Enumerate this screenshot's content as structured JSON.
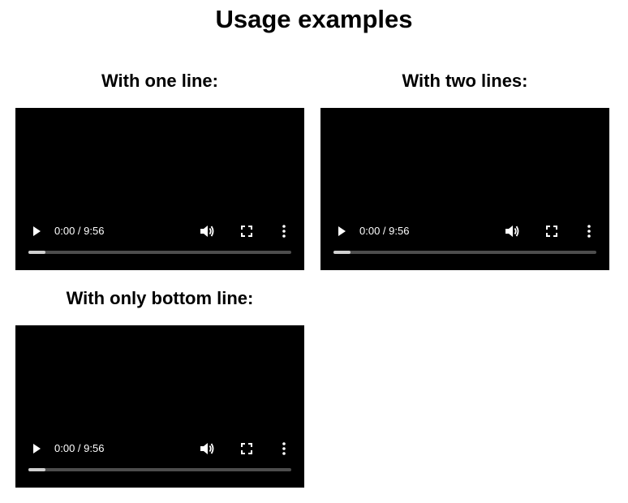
{
  "page": {
    "title": "Usage examples"
  },
  "examples": [
    {
      "heading": "With one line:",
      "player": {
        "time": "0:00 / 9:56",
        "progress_fraction": 0.065
      }
    },
    {
      "heading": "With two lines:",
      "player": {
        "time": "0:00 / 9:56",
        "progress_fraction": 0.065
      }
    },
    {
      "heading": "With only bottom line:",
      "player": {
        "time": "0:00 / 9:56",
        "progress_fraction": 0.065
      }
    }
  ],
  "icons": {
    "play": "play-icon",
    "volume": "volume-icon",
    "fullscreen": "fullscreen-icon",
    "more": "more-vertical-icon"
  },
  "colors": {
    "player_background": "#000000",
    "control_foreground": "#ffffff",
    "seek_track": "#4d4d4d",
    "seek_fill": "#cfcfcf"
  }
}
